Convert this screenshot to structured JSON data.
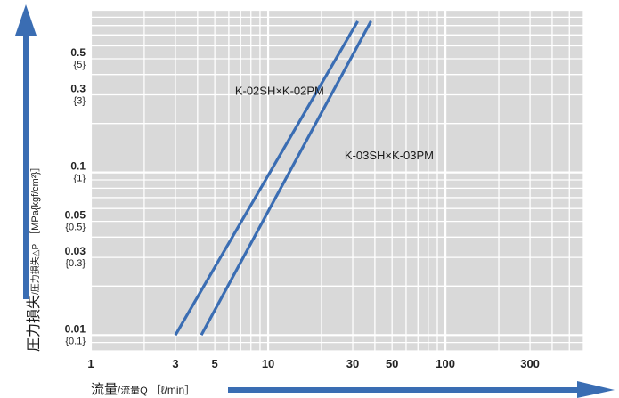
{
  "chart_data": {
    "type": "line",
    "x_scale": "log",
    "y_scale": "log",
    "xlim": [
      1,
      600
    ],
    "ylim": [
      0.008,
      1.0
    ],
    "grid": true,
    "series": [
      {
        "name": "K-02SH×K-02PM",
        "x": [
          3,
          32
        ],
        "y": [
          0.01,
          0.85
        ],
        "color": "#3a6db3"
      },
      {
        "name": "K-03SH×K-03PM",
        "x": [
          4.2,
          38
        ],
        "y": [
          0.01,
          0.85
        ],
        "color": "#3a6db3"
      }
    ],
    "x_ticks": [
      {
        "value": 1,
        "label": "1"
      },
      {
        "value": 3,
        "label": "3"
      },
      {
        "value": 5,
        "label": "5"
      },
      {
        "value": 10,
        "label": "10"
      },
      {
        "value": 30,
        "label": "30"
      },
      {
        "value": 50,
        "label": "50"
      },
      {
        "value": 100,
        "label": "100"
      },
      {
        "value": 300,
        "label": "300"
      }
    ],
    "y_ticks": [
      {
        "value": 0.5,
        "label": "0.5",
        "sub": "{5}"
      },
      {
        "value": 0.3,
        "label": "0.3",
        "sub": "{3}"
      },
      {
        "value": 0.1,
        "label": "0.1",
        "sub": "{1}"
      },
      {
        "value": 0.05,
        "label": "0.05",
        "sub": "{0.5}"
      },
      {
        "value": 0.03,
        "label": "0.03",
        "sub": "{0.3}"
      },
      {
        "value": 0.01,
        "label": "0.01",
        "sub": "{0.1}"
      }
    ],
    "annotations": [
      {
        "text": "K-02SH×K-02PM",
        "x": 6.5,
        "y": 0.3
      },
      {
        "text": "K-03SH×K-03PM",
        "x": 27,
        "y": 0.12
      }
    ],
    "xlabel": {
      "main": "流量",
      "small": "/流量Q",
      "unit": "［ℓ/min］"
    },
    "ylabel": {
      "main": "圧力損失",
      "small": "/圧力損失△P",
      "unit": "［MPa{kgf/cm²}］"
    },
    "arrow_color": "#3a6db3",
    "grid_background": "#d9d9d9",
    "grid_line_color": "#ffffff"
  }
}
